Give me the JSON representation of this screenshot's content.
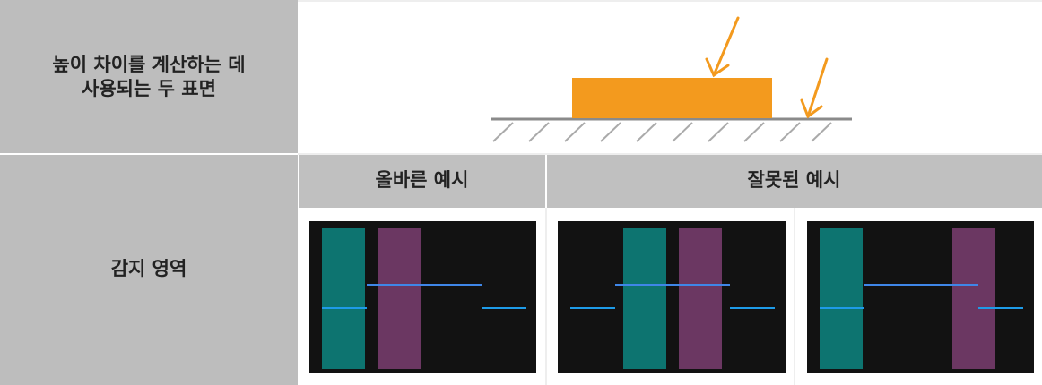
{
  "table": {
    "rows": [
      {
        "label": "높이 차이를 계산하는 데\n사용되는 두 표면"
      },
      {
        "label": "감지 영역",
        "columns": [
          "올바른 예시",
          "잘못된 예시"
        ]
      }
    ]
  }
}
